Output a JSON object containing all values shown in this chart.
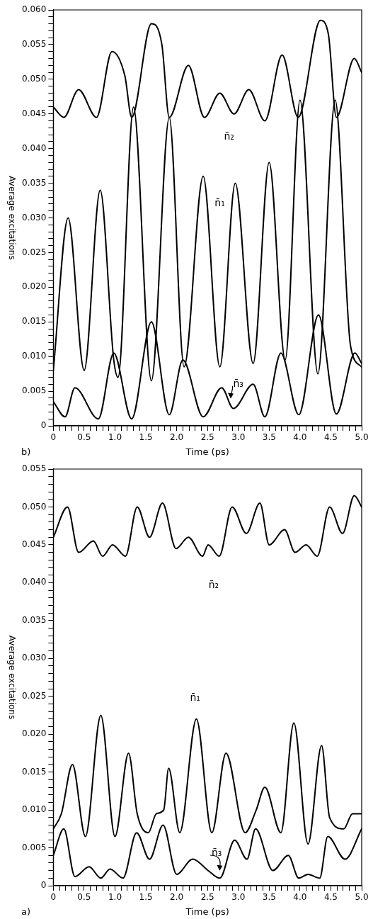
{
  "chart_data": [
    {
      "type": "line",
      "xlabel": "Time (ps)",
      "ylabel": "Average excitations",
      "annotations": [
        "a)"
      ],
      "legend": false,
      "grid": false,
      "marker": "none",
      "line_style": "solid",
      "xlim": [
        0,
        5
      ],
      "ylim": [
        0,
        0.055
      ],
      "xticks": [
        0,
        {
          "value": 0.1,
          "label": null
        },
        {
          "value": 0.2,
          "label": null
        },
        {
          "value": 0.3,
          "label": null
        },
        {
          "value": 0.4,
          "label": null
        },
        0.5,
        {
          "value": 0.6,
          "label": null
        },
        {
          "value": 0.7,
          "label": null
        },
        {
          "value": 0.8,
          "label": null
        },
        {
          "value": 0.9,
          "label": null
        },
        {
          "value": 1,
          "label": "1.0"
        },
        {
          "value": 1.1,
          "label": null
        },
        {
          "value": 1.2,
          "label": null
        },
        {
          "value": 1.3,
          "label": null
        },
        {
          "value": 1.4,
          "label": null
        },
        1.5,
        {
          "value": 1.6,
          "label": null
        },
        {
          "value": 1.7,
          "label": null
        },
        {
          "value": 1.8,
          "label": null
        },
        {
          "value": 1.9,
          "label": null
        },
        {
          "value": 2,
          "label": "2.0"
        },
        {
          "value": 2.1,
          "label": null
        },
        {
          "value": 2.2,
          "label": null
        },
        {
          "value": 2.3,
          "label": null
        },
        {
          "value": 2.4,
          "label": null
        },
        2.5,
        {
          "value": 2.6,
          "label": null
        },
        {
          "value": 2.7,
          "label": null
        },
        {
          "value": 2.8,
          "label": null
        },
        {
          "value": 2.9,
          "label": null
        },
        {
          "value": 3,
          "label": "3.0"
        },
        {
          "value": 3.1,
          "label": null
        },
        {
          "value": 3.2,
          "label": null
        },
        {
          "value": 3.3,
          "label": null
        },
        {
          "value": 3.4,
          "label": null
        },
        3.5,
        {
          "value": 3.6,
          "label": null
        },
        {
          "value": 3.7,
          "label": null
        },
        {
          "value": 3.8,
          "label": null
        },
        {
          "value": 3.9,
          "label": null
        },
        {
          "value": 4,
          "label": "4.0"
        },
        {
          "value": 4.1,
          "label": null
        },
        {
          "value": 4.2,
          "label": null
        },
        {
          "value": 4.3,
          "label": null
        },
        {
          "value": 4.4,
          "label": null
        },
        4.5,
        {
          "value": 4.6,
          "label": null
        },
        {
          "value": 4.7,
          "label": null
        },
        {
          "value": 4.8,
          "label": null
        },
        {
          "value": 4.9,
          "label": null
        },
        {
          "value": 5,
          "label": "5.0"
        }
      ],
      "yticks": [
        0,
        {
          "value": 0.001,
          "label": null
        },
        {
          "value": 0.002,
          "label": null
        },
        {
          "value": 0.003,
          "label": null
        },
        {
          "value": 0.004,
          "label": null
        },
        0.005,
        {
          "value": 0.006,
          "label": null
        },
        {
          "value": 0.007,
          "label": null
        },
        {
          "value": 0.008,
          "label": null
        },
        {
          "value": 0.009,
          "label": null
        },
        {
          "value": 0.01,
          "label": "0.010"
        },
        {
          "value": 0.011,
          "label": null
        },
        {
          "value": 0.012,
          "label": null
        },
        {
          "value": 0.013,
          "label": null
        },
        {
          "value": 0.014,
          "label": null
        },
        0.015,
        {
          "value": 0.016,
          "label": null
        },
        {
          "value": 0.017,
          "label": null
        },
        {
          "value": 0.018,
          "label": null
        },
        {
          "value": 0.019,
          "label": null
        },
        {
          "value": 0.02,
          "label": "0.020"
        },
        {
          "value": 0.021,
          "label": null
        },
        {
          "value": 0.022,
          "label": null
        },
        {
          "value": 0.023,
          "label": null
        },
        {
          "value": 0.024,
          "label": null
        },
        0.025,
        {
          "value": 0.026,
          "label": null
        },
        {
          "value": 0.027,
          "label": null
        },
        {
          "value": 0.028,
          "label": null
        },
        {
          "value": 0.029,
          "label": null
        },
        {
          "value": 0.03,
          "label": "0.030"
        },
        {
          "value": 0.031,
          "label": null
        },
        {
          "value": 0.032,
          "label": null
        },
        {
          "value": 0.033,
          "label": null
        },
        {
          "value": 0.034,
          "label": null
        },
        0.035,
        {
          "value": 0.036,
          "label": null
        },
        {
          "value": 0.037,
          "label": null
        },
        {
          "value": 0.038,
          "label": null
        },
        {
          "value": 0.039,
          "label": null
        },
        {
          "value": 0.04,
          "label": "0.040"
        },
        {
          "value": 0.041,
          "label": null
        },
        {
          "value": 0.042,
          "label": null
        },
        {
          "value": 0.043,
          "label": null
        },
        {
          "value": 0.044,
          "label": null
        },
        0.045,
        {
          "value": 0.046,
          "label": null
        },
        {
          "value": 0.047,
          "label": null
        },
        {
          "value": 0.048,
          "label": null
        },
        {
          "value": 0.049,
          "label": null
        },
        {
          "value": 0.05,
          "label": "0.050"
        },
        {
          "value": 0.051,
          "label": null
        },
        {
          "value": 0.052,
          "label": null
        },
        {
          "value": 0.053,
          "label": null
        },
        {
          "value": 0.054,
          "label": null
        },
        0.055
      ],
      "series": [
        {
          "name": "n̄₁",
          "color": "#000000",
          "x": [
            0,
            0.13,
            0.31,
            0.52,
            0.77,
            1,
            1.22,
            1.36,
            1.54,
            1.67,
            1.79,
            1.87,
            2.05,
            2.32,
            2.57,
            2.8,
            3.11,
            3.29,
            3.43,
            3.69,
            3.9,
            4.13,
            4.35,
            4.48,
            4.71,
            4.85,
            5
          ],
          "values": [
            0.0075,
            0.0095,
            0.016,
            0.0065,
            0.0225,
            0.0065,
            0.0175,
            0.0095,
            0.007,
            0.0095,
            0.01,
            0.0155,
            0.007,
            0.022,
            0.007,
            0.0175,
            0.007,
            0.01,
            0.013,
            0.007,
            0.0215,
            0.0055,
            0.0185,
            0.009,
            0.0075,
            0.0095,
            0.0095
          ]
        },
        {
          "name": "n̄₂",
          "color": "#000000",
          "x": [
            0,
            0.23,
            0.41,
            0.65,
            0.8,
            0.96,
            1.17,
            1.36,
            1.56,
            1.77,
            1.99,
            2.19,
            2.42,
            2.51,
            2.69,
            2.9,
            3.13,
            3.35,
            3.5,
            3.75,
            3.92,
            4.1,
            4.28,
            4.48,
            4.69,
            4.88,
            5
          ],
          "values": [
            0.046,
            0.05,
            0.044,
            0.0455,
            0.0435,
            0.045,
            0.0435,
            0.05,
            0.046,
            0.0505,
            0.0445,
            0.046,
            0.0435,
            0.045,
            0.0435,
            0.05,
            0.0465,
            0.0505,
            0.045,
            0.047,
            0.044,
            0.045,
            0.0435,
            0.05,
            0.0465,
            0.0515,
            0.05
          ]
        },
        {
          "name": "n̄₃",
          "color": "#000000",
          "x": [
            0,
            0.17,
            0.35,
            0.58,
            0.77,
            0.92,
            1.13,
            1.35,
            1.56,
            1.78,
            2,
            2.26,
            2.51,
            2.7,
            2.94,
            3.14,
            3.28,
            3.56,
            3.81,
            3.98,
            4.13,
            4.32,
            4.45,
            4.73,
            5
          ],
          "values": [
            0.004,
            0.0075,
            0.0012,
            0.0025,
            0.001,
            0.0022,
            0.001,
            0.007,
            0.0035,
            0.008,
            0.0015,
            0.0035,
            0.002,
            0.001,
            0.006,
            0.0035,
            0.0075,
            0.002,
            0.004,
            0.001,
            0.0015,
            0.001,
            0.0065,
            0.0035,
            0.0075
          ]
        }
      ]
    },
    {
      "type": "line",
      "xlabel": "Time (ps)",
      "ylabel": "Average excitations",
      "annotations": [
        "b)"
      ],
      "legend": false,
      "grid": false,
      "marker": "none",
      "line_style": "solid",
      "xlim": [
        0,
        5
      ],
      "ylim": [
        0,
        0.06
      ],
      "xticks": [
        0,
        {
          "value": 0.1,
          "label": null
        },
        {
          "value": 0.2,
          "label": null
        },
        {
          "value": 0.3,
          "label": null
        },
        {
          "value": 0.4,
          "label": null
        },
        0.5,
        {
          "value": 0.6,
          "label": null
        },
        {
          "value": 0.7,
          "label": null
        },
        {
          "value": 0.8,
          "label": null
        },
        {
          "value": 0.9,
          "label": null
        },
        {
          "value": 1,
          "label": "1.0"
        },
        {
          "value": 1.1,
          "label": null
        },
        {
          "value": 1.2,
          "label": null
        },
        {
          "value": 1.3,
          "label": null
        },
        {
          "value": 1.4,
          "label": null
        },
        1.5,
        {
          "value": 1.6,
          "label": null
        },
        {
          "value": 1.7,
          "label": null
        },
        {
          "value": 1.8,
          "label": null
        },
        {
          "value": 1.9,
          "label": null
        },
        {
          "value": 2,
          "label": "2.0"
        },
        {
          "value": 2.1,
          "label": null
        },
        {
          "value": 2.2,
          "label": null
        },
        {
          "value": 2.3,
          "label": null
        },
        {
          "value": 2.4,
          "label": null
        },
        2.5,
        {
          "value": 2.6,
          "label": null
        },
        {
          "value": 2.7,
          "label": null
        },
        {
          "value": 2.8,
          "label": null
        },
        {
          "value": 2.9,
          "label": null
        },
        {
          "value": 3,
          "label": "3.0"
        },
        {
          "value": 3.1,
          "label": null
        },
        {
          "value": 3.2,
          "label": null
        },
        {
          "value": 3.3,
          "label": null
        },
        {
          "value": 3.4,
          "label": null
        },
        3.5,
        {
          "value": 3.6,
          "label": null
        },
        {
          "value": 3.7,
          "label": null
        },
        {
          "value": 3.8,
          "label": null
        },
        {
          "value": 3.9,
          "label": null
        },
        {
          "value": 4,
          "label": "4.0"
        },
        {
          "value": 4.1,
          "label": null
        },
        {
          "value": 4.2,
          "label": null
        },
        {
          "value": 4.3,
          "label": null
        },
        {
          "value": 4.4,
          "label": null
        },
        4.5,
        {
          "value": 4.6,
          "label": null
        },
        {
          "value": 4.7,
          "label": null
        },
        {
          "value": 4.8,
          "label": null
        },
        {
          "value": 4.9,
          "label": null
        },
        {
          "value": 5,
          "label": "5.0"
        }
      ],
      "yticks": [
        0,
        {
          "value": 0.001,
          "label": null
        },
        {
          "value": 0.002,
          "label": null
        },
        {
          "value": 0.003,
          "label": null
        },
        {
          "value": 0.004,
          "label": null
        },
        0.005,
        {
          "value": 0.006,
          "label": null
        },
        {
          "value": 0.007,
          "label": null
        },
        {
          "value": 0.008,
          "label": null
        },
        {
          "value": 0.009,
          "label": null
        },
        {
          "value": 0.01,
          "label": "0.010"
        },
        {
          "value": 0.011,
          "label": null
        },
        {
          "value": 0.012,
          "label": null
        },
        {
          "value": 0.013,
          "label": null
        },
        {
          "value": 0.014,
          "label": null
        },
        0.015,
        {
          "value": 0.016,
          "label": null
        },
        {
          "value": 0.017,
          "label": null
        },
        {
          "value": 0.018,
          "label": null
        },
        {
          "value": 0.019,
          "label": null
        },
        {
          "value": 0.02,
          "label": "0.020"
        },
        {
          "value": 0.021,
          "label": null
        },
        {
          "value": 0.022,
          "label": null
        },
        {
          "value": 0.023,
          "label": null
        },
        {
          "value": 0.024,
          "label": null
        },
        0.025,
        {
          "value": 0.026,
          "label": null
        },
        {
          "value": 0.027,
          "label": null
        },
        {
          "value": 0.028,
          "label": null
        },
        {
          "value": 0.029,
          "label": null
        },
        {
          "value": 0.03,
          "label": "0.030"
        },
        {
          "value": 0.031,
          "label": null
        },
        {
          "value": 0.032,
          "label": null
        },
        {
          "value": 0.033,
          "label": null
        },
        {
          "value": 0.034,
          "label": null
        },
        0.035,
        {
          "value": 0.036,
          "label": null
        },
        {
          "value": 0.037,
          "label": null
        },
        {
          "value": 0.038,
          "label": null
        },
        {
          "value": 0.039,
          "label": null
        },
        {
          "value": 0.04,
          "label": "0.040"
        },
        {
          "value": 0.041,
          "label": null
        },
        {
          "value": 0.042,
          "label": null
        },
        {
          "value": 0.043,
          "label": null
        },
        {
          "value": 0.044,
          "label": null
        },
        0.045,
        {
          "value": 0.046,
          "label": null
        },
        {
          "value": 0.047,
          "label": null
        },
        {
          "value": 0.048,
          "label": null
        },
        {
          "value": 0.049,
          "label": null
        },
        {
          "value": 0.05,
          "label": "0.050"
        },
        {
          "value": 0.051,
          "label": null
        },
        {
          "value": 0.052,
          "label": null
        },
        {
          "value": 0.053,
          "label": null
        },
        {
          "value": 0.054,
          "label": null
        },
        0.055,
        {
          "value": 0.056,
          "label": null
        },
        {
          "value": 0.057,
          "label": null
        },
        {
          "value": 0.058,
          "label": null
        },
        {
          "value": 0.059,
          "label": null
        },
        {
          "value": 0.06,
          "label": "0.060"
        }
      ],
      "series": [
        {
          "name": "n̄₁",
          "color": "#000000",
          "x": [
            0,
            0.24,
            0.5,
            0.76,
            0.98,
            1.05,
            1.3,
            1.59,
            1.88,
            2.12,
            2.43,
            2.7,
            2.95,
            3.24,
            3.5,
            3.76,
            4,
            4.29,
            4.57,
            4.82,
            5
          ],
          "values": [
            0.008,
            0.03,
            0.008,
            0.034,
            0.0095,
            0.007,
            0.046,
            0.0065,
            0.0445,
            0.0085,
            0.036,
            0.0085,
            0.035,
            0.009,
            0.038,
            0.0095,
            0.047,
            0.0075,
            0.047,
            0.0115,
            0.0085
          ]
        },
        {
          "name": "n̄₂",
          "color": "#000000",
          "x": [
            0,
            0.17,
            0.41,
            0.7,
            0.95,
            1.16,
            1.27,
            1.59,
            1.76,
            1.88,
            2.19,
            2.45,
            2.7,
            2.93,
            3.17,
            3.43,
            3.71,
            3.97,
            4.33,
            4.46,
            4.59,
            4.88,
            5
          ],
          "values": [
            0.046,
            0.0445,
            0.0485,
            0.0445,
            0.054,
            0.0505,
            0.0445,
            0.058,
            0.055,
            0.0445,
            0.052,
            0.0445,
            0.048,
            0.045,
            0.0485,
            0.044,
            0.0535,
            0.0445,
            0.0585,
            0.0565,
            0.0445,
            0.053,
            0.051
          ]
        },
        {
          "name": "n̄₃",
          "color": "#000000",
          "x": [
            0,
            0.19,
            0.35,
            0.73,
            0.98,
            1.27,
            1.59,
            1.88,
            2.1,
            2.43,
            2.73,
            2.92,
            3.24,
            3.43,
            3.69,
            3.98,
            4.3,
            4.59,
            4.89,
            5
          ],
          "values": [
            0.0035,
            0.0013,
            0.0055,
            0.001,
            0.0105,
            0.001,
            0.015,
            0.0016,
            0.0095,
            0.0013,
            0.0055,
            0.0025,
            0.006,
            0.0013,
            0.0105,
            0.0016,
            0.016,
            0.0017,
            0.0105,
            0.009
          ]
        }
      ]
    }
  ]
}
